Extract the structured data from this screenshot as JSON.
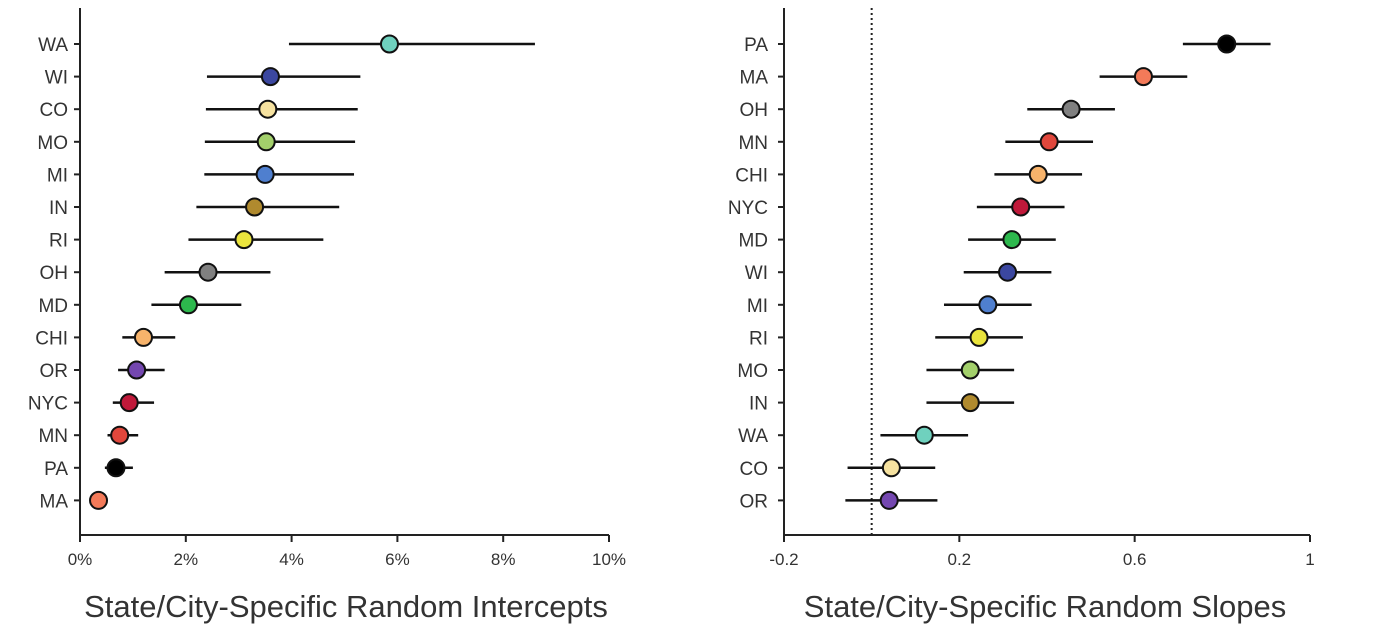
{
  "chart_data": [
    {
      "type": "forest",
      "xlabel": "State/City-Specific Random Intercepts",
      "xlim": [
        0,
        10
      ],
      "xticks": [
        {
          "value": 0,
          "label": "0%"
        },
        {
          "value": 2,
          "label": "2%"
        },
        {
          "value": 4,
          "label": "4%"
        },
        {
          "value": 6,
          "label": "6%"
        },
        {
          "value": 8,
          "label": "8%"
        },
        {
          "value": 10,
          "label": "10%"
        }
      ],
      "reference_line": null,
      "points": [
        {
          "label": "WA",
          "value": 5.85,
          "low": 3.95,
          "high": 8.6,
          "color": "#6fd1be"
        },
        {
          "label": "WI",
          "value": 3.6,
          "low": 2.4,
          "high": 5.3,
          "color": "#3b47a0"
        },
        {
          "label": "CO",
          "value": 3.55,
          "low": 2.38,
          "high": 5.25,
          "color": "#f6e2a0"
        },
        {
          "label": "MO",
          "value": 3.52,
          "low": 2.36,
          "high": 5.2,
          "color": "#a3d06b"
        },
        {
          "label": "MI",
          "value": 3.5,
          "low": 2.35,
          "high": 5.18,
          "color": "#4f7fcf"
        },
        {
          "label": "IN",
          "value": 3.3,
          "low": 2.2,
          "high": 4.9,
          "color": "#b08a2e"
        },
        {
          "label": "RI",
          "value": 3.1,
          "low": 2.05,
          "high": 4.6,
          "color": "#eae43d"
        },
        {
          "label": "OH",
          "value": 2.42,
          "low": 1.6,
          "high": 3.6,
          "color": "#808080"
        },
        {
          "label": "MD",
          "value": 2.05,
          "low": 1.35,
          "high": 3.05,
          "color": "#2db84d"
        },
        {
          "label": "CHI",
          "value": 1.2,
          "low": 0.8,
          "high": 1.8,
          "color": "#f7b36b"
        },
        {
          "label": "OR",
          "value": 1.07,
          "low": 0.72,
          "high": 1.6,
          "color": "#7447b0"
        },
        {
          "label": "NYC",
          "value": 0.93,
          "low": 0.62,
          "high": 1.4,
          "color": "#c0193a"
        },
        {
          "label": "MN",
          "value": 0.75,
          "low": 0.52,
          "high": 1.1,
          "color": "#e0473c"
        },
        {
          "label": "PA",
          "value": 0.68,
          "low": 0.47,
          "high": 1.0,
          "color": "#000000"
        },
        {
          "label": "MA",
          "value": 0.35,
          "low": 0.35,
          "high": 0.35,
          "color": "#f37a59"
        }
      ]
    },
    {
      "type": "forest",
      "xlabel": "State/City-Specific Random Slopes",
      "xlim": [
        -0.2,
        1
      ],
      "xticks": [
        {
          "value": -0.2,
          "label": "-0.2"
        },
        {
          "value": 0.2,
          "label": "0.2"
        },
        {
          "value": 0.6,
          "label": "0.6"
        },
        {
          "value": 1,
          "label": "1"
        }
      ],
      "reference_line": 0,
      "points": [
        {
          "label": "PA",
          "value": 0.81,
          "low": 0.71,
          "high": 0.91,
          "color": "#000000"
        },
        {
          "label": "MA",
          "value": 0.62,
          "low": 0.52,
          "high": 0.72,
          "color": "#f37a59"
        },
        {
          "label": "OH",
          "value": 0.455,
          "low": 0.355,
          "high": 0.555,
          "color": "#808080"
        },
        {
          "label": "MN",
          "value": 0.405,
          "low": 0.305,
          "high": 0.505,
          "color": "#e0473c"
        },
        {
          "label": "CHI",
          "value": 0.38,
          "low": 0.28,
          "high": 0.48,
          "color": "#f7b36b"
        },
        {
          "label": "NYC",
          "value": 0.34,
          "low": 0.24,
          "high": 0.44,
          "color": "#c0193a"
        },
        {
          "label": "MD",
          "value": 0.32,
          "low": 0.22,
          "high": 0.42,
          "color": "#2db84d"
        },
        {
          "label": "WI",
          "value": 0.31,
          "low": 0.21,
          "high": 0.41,
          "color": "#3b47a0"
        },
        {
          "label": "MI",
          "value": 0.265,
          "low": 0.165,
          "high": 0.365,
          "color": "#4f7fcf"
        },
        {
          "label": "RI",
          "value": 0.245,
          "low": 0.145,
          "high": 0.345,
          "color": "#eae43d"
        },
        {
          "label": "MO",
          "value": 0.225,
          "low": 0.125,
          "high": 0.325,
          "color": "#a3d06b"
        },
        {
          "label": "IN",
          "value": 0.225,
          "low": 0.125,
          "high": 0.325,
          "color": "#b08a2e"
        },
        {
          "label": "WA",
          "value": 0.12,
          "low": 0.02,
          "high": 0.22,
          "color": "#6fd1be"
        },
        {
          "label": "CO",
          "value": 0.045,
          "low": -0.055,
          "high": 0.145,
          "color": "#f6e2a0"
        },
        {
          "label": "OR",
          "value": 0.04,
          "low": -0.06,
          "high": 0.15,
          "color": "#7447b0"
        }
      ]
    }
  ]
}
